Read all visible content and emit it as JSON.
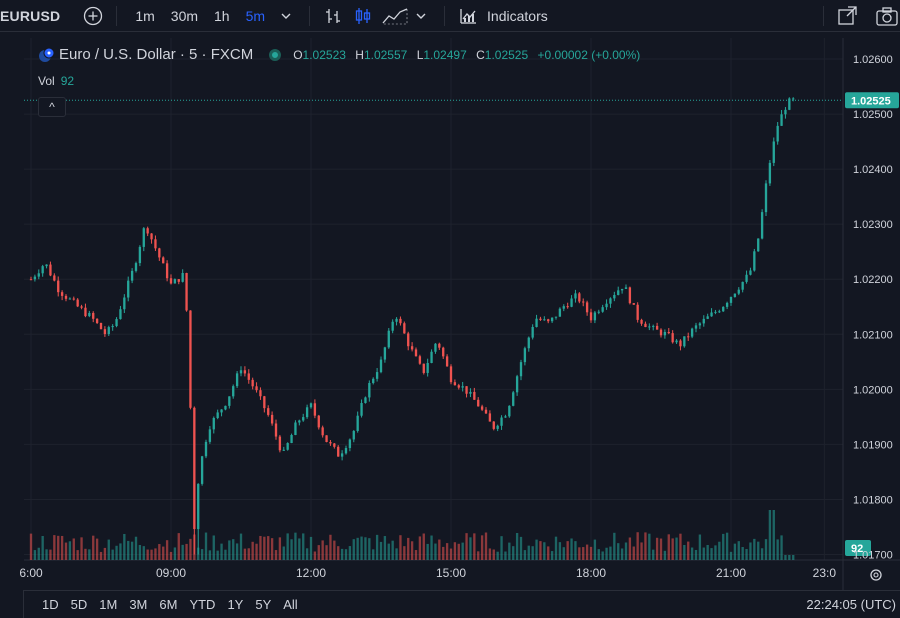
{
  "toolbar": {
    "symbol": "EURUSD",
    "intervals": [
      "1m",
      "30m",
      "1h",
      "5m"
    ],
    "active_interval": "5m",
    "indicators_label": "Indicators"
  },
  "legend": {
    "title": "Euro / U.S. Dollar · 5 · FXCM",
    "o_key": "O",
    "o_val": "1.02523",
    "h_key": "H",
    "h_val": "1.02557",
    "l_key": "L",
    "l_val": "1.02497",
    "c_key": "C",
    "c_val": "1.02525",
    "change": "+0.00002 (+0.00%)",
    "vol_label": "Vol",
    "vol_val": "92"
  },
  "collapse_label": "^",
  "bottom": {
    "ranges": [
      "1D",
      "5D",
      "1M",
      "3M",
      "6M",
      "YTD",
      "1Y",
      "5Y",
      "All"
    ],
    "clock": "22:24:05 (UTC)"
  },
  "colors": {
    "up": "#26a69a",
    "down": "#ef5350",
    "background": "#131722",
    "grid": "#1e222d",
    "text": "#d1d4dc"
  },
  "chart_data": {
    "type": "candlestick",
    "y_ticks": [
      "1.02600",
      "1.02500",
      "1.02400",
      "1.02300",
      "1.02200",
      "1.02100",
      "1.02000",
      "1.01900",
      "1.01800",
      "1.01700"
    ],
    "ylim": [
      1.0169,
      1.0262
    ],
    "x_ticks": [
      "6:00",
      "09:00",
      "12:00",
      "15:00",
      "18:00",
      "21:00",
      "23:0"
    ],
    "last_price_label": "1.02525",
    "last_price": 1.02525,
    "last_volume_label": "92",
    "series": [
      {
        "name": "price",
        "waypoints": [
          [
            6.0,
            1.022
          ],
          [
            6.3,
            1.0223
          ],
          [
            6.6,
            1.0218
          ],
          [
            7.0,
            1.0215
          ],
          [
            7.3,
            1.0213
          ],
          [
            7.6,
            1.021
          ],
          [
            7.8,
            1.0212
          ],
          [
            8.2,
            1.0222
          ],
          [
            8.45,
            1.023
          ],
          [
            8.7,
            1.0225
          ],
          [
            9.0,
            1.0219
          ],
          [
            9.3,
            1.0221
          ],
          [
            9.4,
            1.0201
          ],
          [
            9.5,
            1.0175
          ],
          [
            9.6,
            1.0185
          ],
          [
            9.8,
            1.0193
          ],
          [
            10.2,
            1.0198
          ],
          [
            10.5,
            1.0204
          ],
          [
            10.8,
            1.02
          ],
          [
            11.1,
            1.0195
          ],
          [
            11.4,
            1.0188
          ],
          [
            11.7,
            1.0194
          ],
          [
            12.0,
            1.0197
          ],
          [
            12.3,
            1.0191
          ],
          [
            12.6,
            1.0188
          ],
          [
            12.9,
            1.0192
          ],
          [
            13.2,
            1.02
          ],
          [
            13.5,
            1.0205
          ],
          [
            13.8,
            1.0214
          ],
          [
            14.1,
            1.0208
          ],
          [
            14.4,
            1.0203
          ],
          [
            14.7,
            1.0209
          ],
          [
            15.0,
            1.0202
          ],
          [
            15.3,
            1.02
          ],
          [
            15.6,
            1.0197
          ],
          [
            15.9,
            1.0193
          ],
          [
            16.2,
            1.0196
          ],
          [
            16.5,
            1.0205
          ],
          [
            16.8,
            1.0213
          ],
          [
            17.1,
            1.0212
          ],
          [
            17.4,
            1.0215
          ],
          [
            17.7,
            1.0217
          ],
          [
            18.0,
            1.0213
          ],
          [
            18.3,
            1.0216
          ],
          [
            18.7,
            1.0219
          ],
          [
            19.0,
            1.0213
          ],
          [
            19.3,
            1.0211
          ],
          [
            19.6,
            1.021
          ],
          [
            19.9,
            1.0208
          ],
          [
            20.2,
            1.0211
          ],
          [
            20.5,
            1.0213
          ],
          [
            20.8,
            1.0215
          ],
          [
            21.1,
            1.0218
          ],
          [
            21.4,
            1.0221
          ],
          [
            21.6,
            1.0228
          ],
          [
            21.8,
            1.024
          ],
          [
            22.0,
            1.0248
          ],
          [
            22.2,
            1.0252
          ],
          [
            22.35,
            1.02525
          ]
        ]
      }
    ]
  }
}
